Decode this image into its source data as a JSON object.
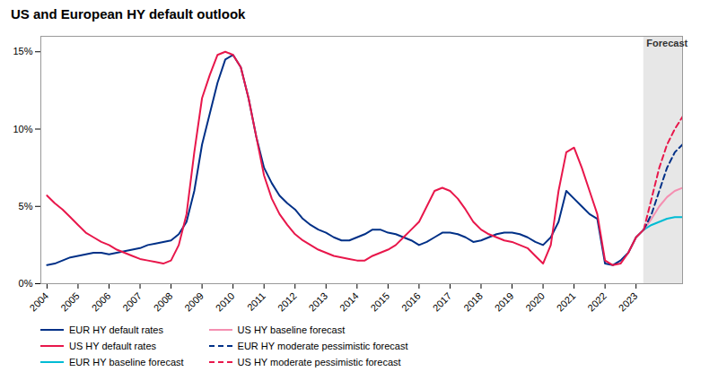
{
  "chart_data": {
    "type": "line",
    "title": "US and European HY default outlook",
    "xlim": [
      2003.8,
      2024.5
    ],
    "xticks": [
      2004,
      2005,
      2006,
      2007,
      2008,
      2009,
      2010,
      2011,
      2012,
      2013,
      2014,
      2015,
      2016,
      2017,
      2018,
      2019,
      2020,
      2021,
      2022,
      2023
    ],
    "ylim": [
      0,
      0.16
    ],
    "yticks": [
      {
        "value": 0.0,
        "label": "0%"
      },
      {
        "value": 0.05,
        "label": "5%"
      },
      {
        "value": 0.1,
        "label": "10%"
      },
      {
        "value": 0.15,
        "label": "15%"
      }
    ],
    "grid": false,
    "legend": "bottom",
    "spans": [
      {
        "x0": 2023.25,
        "x1": 2024.5,
        "label": "Forecast"
      }
    ],
    "series": [
      {
        "name": "EUR HY default rates",
        "color": "#003087",
        "line_style": "solid",
        "x": [
          2004,
          2004.25,
          2004.5,
          2004.75,
          2005,
          2005.25,
          2005.5,
          2005.75,
          2006,
          2006.25,
          2006.5,
          2006.75,
          2007,
          2007.25,
          2007.5,
          2007.75,
          2008,
          2008.25,
          2008.5,
          2008.75,
          2009,
          2009.25,
          2009.5,
          2009.75,
          2010,
          2010.25,
          2010.5,
          2010.75,
          2011,
          2011.25,
          2011.5,
          2011.75,
          2012,
          2012.25,
          2012.5,
          2012.75,
          2013,
          2013.25,
          2013.5,
          2013.75,
          2014,
          2014.25,
          2014.5,
          2014.75,
          2015,
          2015.25,
          2015.5,
          2015.75,
          2016,
          2016.25,
          2016.5,
          2016.75,
          2017,
          2017.25,
          2017.5,
          2017.75,
          2018,
          2018.25,
          2018.5,
          2018.75,
          2019,
          2019.25,
          2019.5,
          2019.75,
          2020,
          2020.25,
          2020.5,
          2020.75,
          2021,
          2021.25,
          2021.5,
          2021.75,
          2022,
          2022.25,
          2022.5,
          2022.75,
          2023,
          2023.25
        ],
        "values": [
          0.012,
          0.013,
          0.015,
          0.017,
          0.018,
          0.019,
          0.02,
          0.02,
          0.019,
          0.02,
          0.021,
          0.022,
          0.023,
          0.025,
          0.026,
          0.027,
          0.028,
          0.032,
          0.04,
          0.06,
          0.09,
          0.11,
          0.13,
          0.145,
          0.148,
          0.14,
          0.12,
          0.095,
          0.075,
          0.065,
          0.057,
          0.052,
          0.048,
          0.042,
          0.038,
          0.035,
          0.033,
          0.03,
          0.028,
          0.028,
          0.03,
          0.032,
          0.035,
          0.035,
          0.033,
          0.032,
          0.03,
          0.028,
          0.025,
          0.027,
          0.03,
          0.033,
          0.033,
          0.032,
          0.03,
          0.027,
          0.028,
          0.03,
          0.032,
          0.033,
          0.033,
          0.032,
          0.03,
          0.027,
          0.025,
          0.03,
          0.04,
          0.06,
          0.055,
          0.05,
          0.045,
          0.042,
          0.013,
          0.012,
          0.015,
          0.02,
          0.03,
          0.035
        ]
      },
      {
        "name": "US HY default rates",
        "color": "#e8174b",
        "line_style": "solid",
        "x": [
          2004,
          2004.25,
          2004.5,
          2004.75,
          2005,
          2005.25,
          2005.5,
          2005.75,
          2006,
          2006.25,
          2006.5,
          2006.75,
          2007,
          2007.25,
          2007.5,
          2007.75,
          2008,
          2008.25,
          2008.5,
          2008.75,
          2009,
          2009.25,
          2009.5,
          2009.75,
          2010,
          2010.25,
          2010.5,
          2010.75,
          2011,
          2011.25,
          2011.5,
          2011.75,
          2012,
          2012.25,
          2012.5,
          2012.75,
          2013,
          2013.25,
          2013.5,
          2013.75,
          2014,
          2014.25,
          2014.5,
          2014.75,
          2015,
          2015.25,
          2015.5,
          2015.75,
          2016,
          2016.25,
          2016.5,
          2016.75,
          2017,
          2017.25,
          2017.5,
          2017.75,
          2018,
          2018.25,
          2018.5,
          2018.75,
          2019,
          2019.25,
          2019.5,
          2019.75,
          2020,
          2020.25,
          2020.5,
          2020.75,
          2021,
          2021.25,
          2021.5,
          2021.75,
          2022,
          2022.25,
          2022.5,
          2022.75,
          2023,
          2023.25
        ],
        "values": [
          0.057,
          0.052,
          0.048,
          0.043,
          0.038,
          0.033,
          0.03,
          0.027,
          0.025,
          0.022,
          0.02,
          0.018,
          0.016,
          0.015,
          0.014,
          0.013,
          0.015,
          0.025,
          0.045,
          0.085,
          0.12,
          0.135,
          0.148,
          0.15,
          0.148,
          0.14,
          0.12,
          0.095,
          0.07,
          0.055,
          0.045,
          0.038,
          0.032,
          0.028,
          0.025,
          0.022,
          0.02,
          0.018,
          0.017,
          0.016,
          0.015,
          0.015,
          0.018,
          0.02,
          0.022,
          0.025,
          0.03,
          0.035,
          0.04,
          0.05,
          0.06,
          0.062,
          0.06,
          0.055,
          0.048,
          0.04,
          0.035,
          0.032,
          0.03,
          0.028,
          0.027,
          0.025,
          0.023,
          0.018,
          0.013,
          0.025,
          0.06,
          0.085,
          0.088,
          0.075,
          0.06,
          0.045,
          0.015,
          0.012,
          0.013,
          0.02,
          0.03,
          0.035
        ]
      },
      {
        "name": "EUR HY baseline forecast",
        "color": "#00bcd4",
        "line_style": "solid",
        "x": [
          2023.25,
          2023.5,
          2023.75,
          2024.0,
          2024.25,
          2024.5
        ],
        "values": [
          0.035,
          0.038,
          0.04,
          0.042,
          0.043,
          0.043
        ]
      },
      {
        "name": "US HY baseline forecast",
        "color": "#f48fb1",
        "line_style": "solid",
        "x": [
          2023.25,
          2023.5,
          2023.75,
          2024.0,
          2024.25,
          2024.5
        ],
        "values": [
          0.035,
          0.042,
          0.05,
          0.056,
          0.06,
          0.062
        ]
      },
      {
        "name": "EUR HY moderate pessimistic forecast",
        "color": "#003087",
        "line_style": "dashed",
        "x": [
          2023.25,
          2023.5,
          2023.75,
          2024.0,
          2024.25,
          2024.5
        ],
        "values": [
          0.035,
          0.045,
          0.06,
          0.075,
          0.085,
          0.09
        ]
      },
      {
        "name": "US HY moderate pessimistic forecast",
        "color": "#e8174b",
        "line_style": "dashed",
        "x": [
          2023.25,
          2023.5,
          2023.75,
          2024.0,
          2024.25,
          2024.5
        ],
        "values": [
          0.035,
          0.055,
          0.075,
          0.09,
          0.1,
          0.108
        ]
      }
    ]
  }
}
